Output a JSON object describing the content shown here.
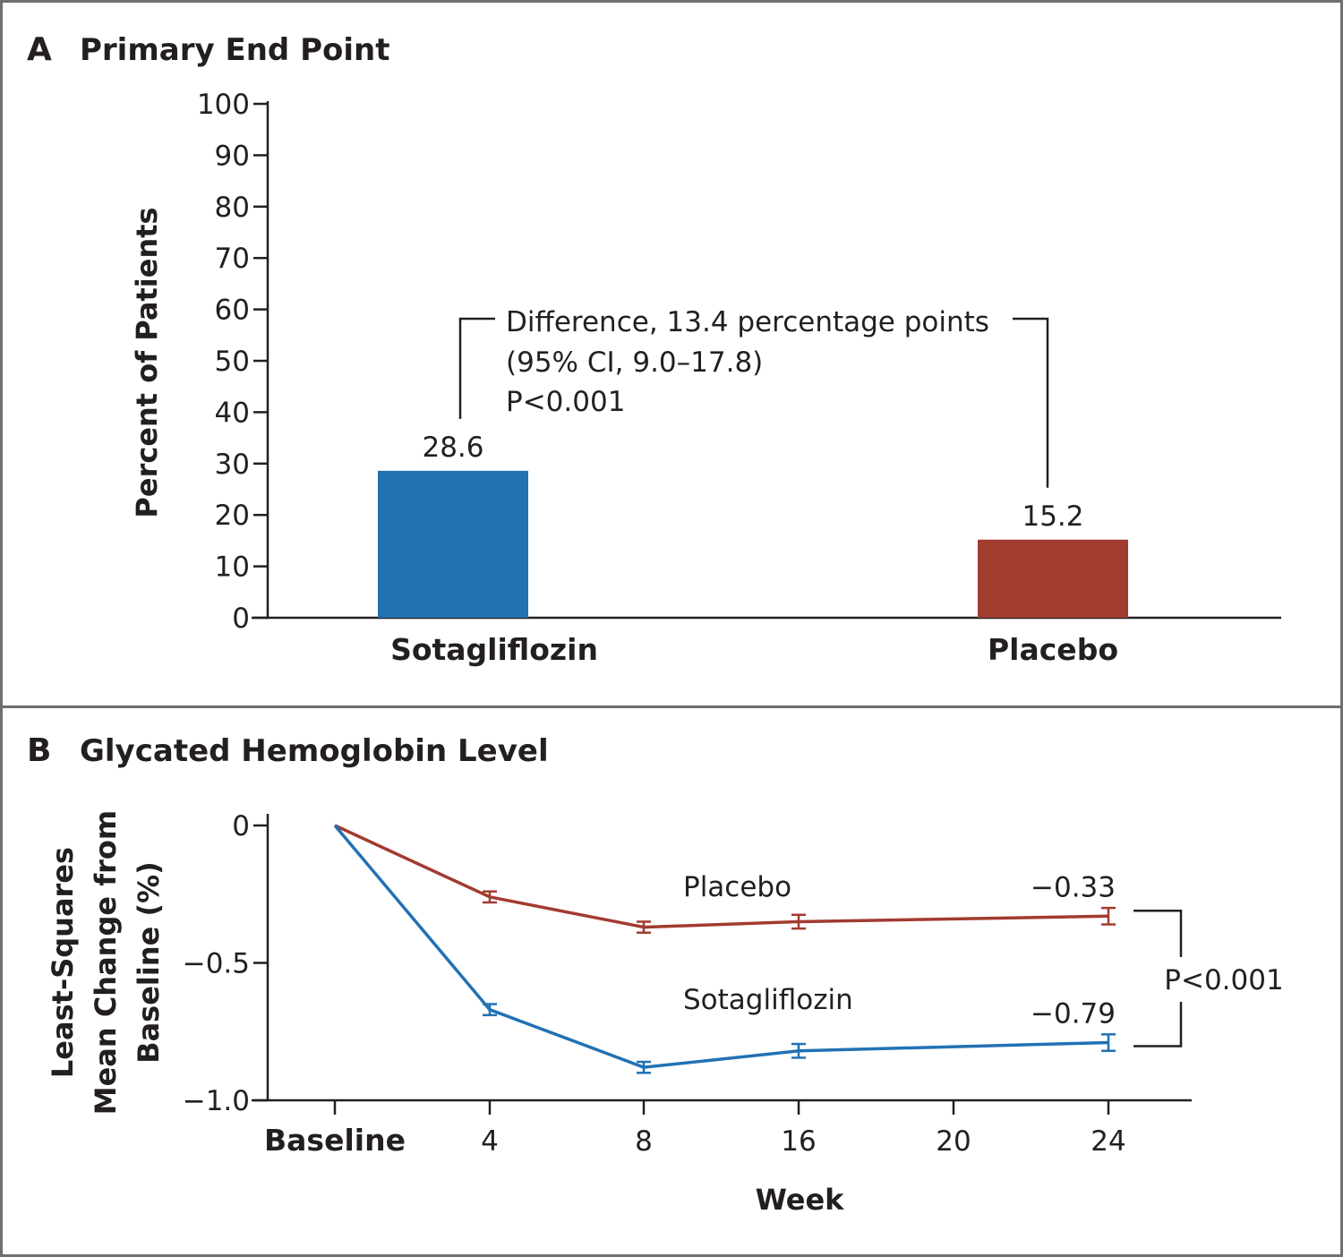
{
  "chart_data": [
    {
      "type": "bar",
      "panel_letter": "A",
      "title": "Primary End Point",
      "ylabel": "Percent of Patients",
      "xlabel": "",
      "ylim": [
        0,
        100
      ],
      "yticks": [
        "0",
        "10",
        "20",
        "30",
        "40",
        "50",
        "60",
        "70",
        "80",
        "90",
        "100"
      ],
      "categories": [
        "Sotagliflozin",
        "Placebo"
      ],
      "values": [
        28.6,
        15.2
      ],
      "value_labels": [
        "28.6",
        "15.2"
      ],
      "colors": [
        "#2271b3",
        "#a23b30"
      ],
      "annotation": {
        "lines": [
          "Difference, 13.4 percentage points",
          "(95% CI, 9.0–17.8)",
          "P<0.001"
        ]
      }
    },
    {
      "type": "line",
      "panel_letter": "B",
      "title": "Glycated Hemoglobin Level",
      "ylabel_lines": [
        "Least-Squares",
        "Mean Change from",
        "Baseline (%)"
      ],
      "xlabel": "Week",
      "ylim": [
        -1.0,
        0
      ],
      "yticks": [
        {
          "value": 0,
          "label": "0"
        },
        {
          "value": -0.5,
          "label": "−0.5"
        },
        {
          "value": -1.0,
          "label": "−1.0"
        }
      ],
      "xticks": [
        {
          "value": 0,
          "label": "Baseline"
        },
        {
          "value": 4,
          "label": "4"
        },
        {
          "value": 8,
          "label": "8"
        },
        {
          "value": 16,
          "label": "16"
        },
        {
          "value": 20,
          "label": "20"
        },
        {
          "value": 24,
          "label": "24"
        }
      ],
      "series": [
        {
          "name": "Placebo",
          "color": "#a23b30",
          "x": [
            0,
            4,
            8,
            16,
            24
          ],
          "y": [
            0,
            -0.26,
            -0.37,
            -0.35,
            -0.33
          ],
          "err": [
            0,
            0.02,
            0.02,
            0.025,
            0.03
          ],
          "end_label": "−0.33"
        },
        {
          "name": "Sotagliflozin",
          "color": "#2271b3",
          "x": [
            0,
            4,
            8,
            16,
            24
          ],
          "y": [
            0,
            -0.67,
            -0.88,
            -0.82,
            -0.79
          ],
          "err": [
            0,
            0.02,
            0.02,
            0.025,
            0.03
          ],
          "end_label": "−0.79"
        }
      ],
      "pvalue": "P<0.001"
    }
  ]
}
